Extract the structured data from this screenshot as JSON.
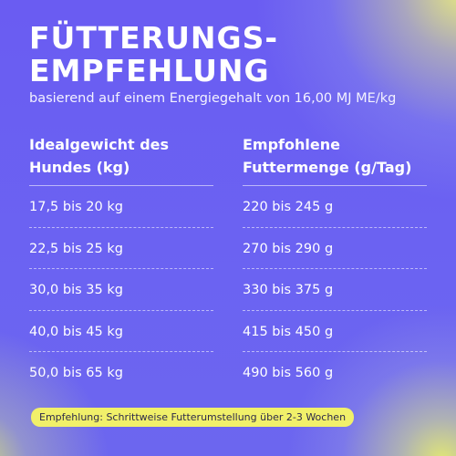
{
  "header": {
    "title_line1": "FÜTTERUNGS-",
    "title_line2": "EMPFEHLUNG",
    "subtitle": "basierend auf einem Energiegehalt von 16,00 MJ ME/kg"
  },
  "table": {
    "columns": [
      {
        "line1": "Idealgewicht des",
        "line2": "Hundes (kg)"
      },
      {
        "line1": "Empfohlene",
        "line2": "Futtermenge (g/Tag)"
      }
    ],
    "rows": [
      {
        "weight": "17,5 bis 20 kg",
        "amount": "220 bis 245 g"
      },
      {
        "weight": "22,5 bis 25 kg",
        "amount": "270 bis 290 g"
      },
      {
        "weight": "30,0 bis 35 kg",
        "amount": "330 bis 375 g"
      },
      {
        "weight": "40,0 bis 45 kg",
        "amount": "415 bis 450 g"
      },
      {
        "weight": "50,0 bis 65 kg",
        "amount": "490 bis 560 g"
      }
    ]
  },
  "footer": {
    "recommendation": "Empfehlung: Schrittweise Futterumstellung über 2-3 Wochen"
  },
  "colors": {
    "background": "#6a5ff0",
    "accent_yellow": "#f1f06a",
    "text": "#ffffff"
  }
}
